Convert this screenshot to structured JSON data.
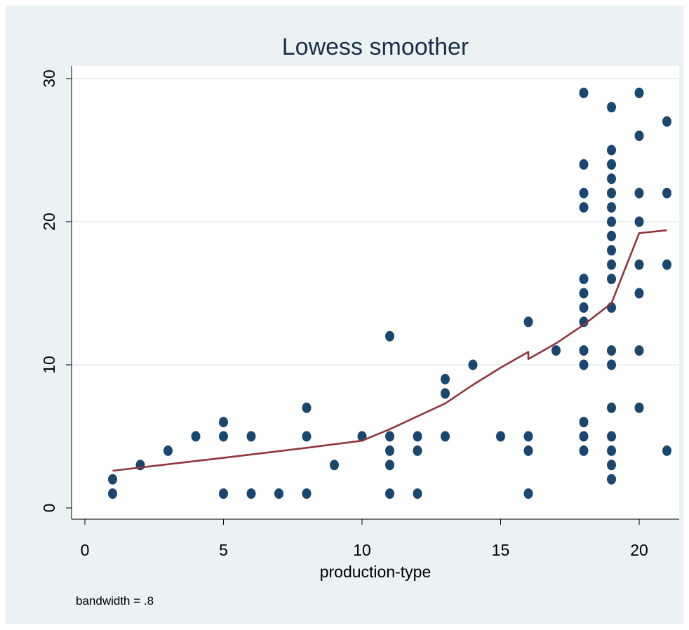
{
  "chart_data": {
    "type": "scatter",
    "title": "Lowess smoother",
    "xlabel": "production-type",
    "ylabel": "",
    "note": "bandwidth = .8",
    "xlim": [
      0,
      21
    ],
    "ylim": [
      0,
      30
    ],
    "xticks": [
      "0",
      "5",
      "10",
      "15",
      "20"
    ],
    "yticks": [
      "0",
      "10",
      "20",
      "30"
    ],
    "grid": "horizontal",
    "colors": {
      "points": "#1a476f",
      "line": "#90353b",
      "background": "#eaf2f3",
      "plot": "#ffffff",
      "grid": "#eaf2f3"
    },
    "points": [
      [
        1,
        1
      ],
      [
        1,
        2
      ],
      [
        2,
        3
      ],
      [
        3,
        4
      ],
      [
        4,
        5
      ],
      [
        5,
        1
      ],
      [
        5,
        5
      ],
      [
        5,
        6
      ],
      [
        6,
        1
      ],
      [
        6,
        5
      ],
      [
        7,
        1
      ],
      [
        8,
        1
      ],
      [
        8,
        5
      ],
      [
        8,
        7
      ],
      [
        9,
        3
      ],
      [
        10,
        5
      ],
      [
        11,
        1
      ],
      [
        11,
        3
      ],
      [
        11,
        4
      ],
      [
        11,
        5
      ],
      [
        11,
        12
      ],
      [
        12,
        1
      ],
      [
        12,
        4
      ],
      [
        12,
        5
      ],
      [
        13,
        5
      ],
      [
        13,
        8
      ],
      [
        13,
        9
      ],
      [
        14,
        10
      ],
      [
        15,
        5
      ],
      [
        16,
        1
      ],
      [
        16,
        4
      ],
      [
        16,
        5
      ],
      [
        16,
        13
      ],
      [
        17,
        11
      ],
      [
        18,
        4
      ],
      [
        18,
        5
      ],
      [
        18,
        6
      ],
      [
        18,
        10
      ],
      [
        18,
        11
      ],
      [
        18,
        13
      ],
      [
        18,
        14
      ],
      [
        18,
        15
      ],
      [
        18,
        16
      ],
      [
        18,
        21
      ],
      [
        18,
        22
      ],
      [
        18,
        24
      ],
      [
        18,
        29
      ],
      [
        19,
        2
      ],
      [
        19,
        3
      ],
      [
        19,
        4
      ],
      [
        19,
        5
      ],
      [
        19,
        7
      ],
      [
        19,
        10
      ],
      [
        19,
        11
      ],
      [
        19,
        14
      ],
      [
        19,
        16
      ],
      [
        19,
        17
      ],
      [
        19,
        18
      ],
      [
        19,
        19
      ],
      [
        19,
        20
      ],
      [
        19,
        21
      ],
      [
        19,
        22
      ],
      [
        19,
        23
      ],
      [
        19,
        24
      ],
      [
        19,
        25
      ],
      [
        19,
        28
      ],
      [
        20,
        7
      ],
      [
        20,
        11
      ],
      [
        20,
        15
      ],
      [
        20,
        17
      ],
      [
        20,
        20
      ],
      [
        20,
        22
      ],
      [
        20,
        26
      ],
      [
        20,
        29
      ],
      [
        21,
        4
      ],
      [
        21,
        17
      ],
      [
        21,
        22
      ],
      [
        21,
        27
      ]
    ],
    "lowess": [
      [
        1,
        2.6
      ],
      [
        5,
        3.5
      ],
      [
        8,
        4.2
      ],
      [
        10,
        4.7
      ],
      [
        11,
        5.5
      ],
      [
        12,
        6.4
      ],
      [
        13,
        7.3
      ],
      [
        14,
        8.6
      ],
      [
        15,
        9.8
      ],
      [
        16,
        10.9
      ],
      [
        16,
        10.4
      ],
      [
        17,
        11.5
      ],
      [
        18,
        12.8
      ],
      [
        19,
        14.3
      ],
      [
        20,
        19.2
      ],
      [
        21,
        19.4
      ]
    ]
  }
}
